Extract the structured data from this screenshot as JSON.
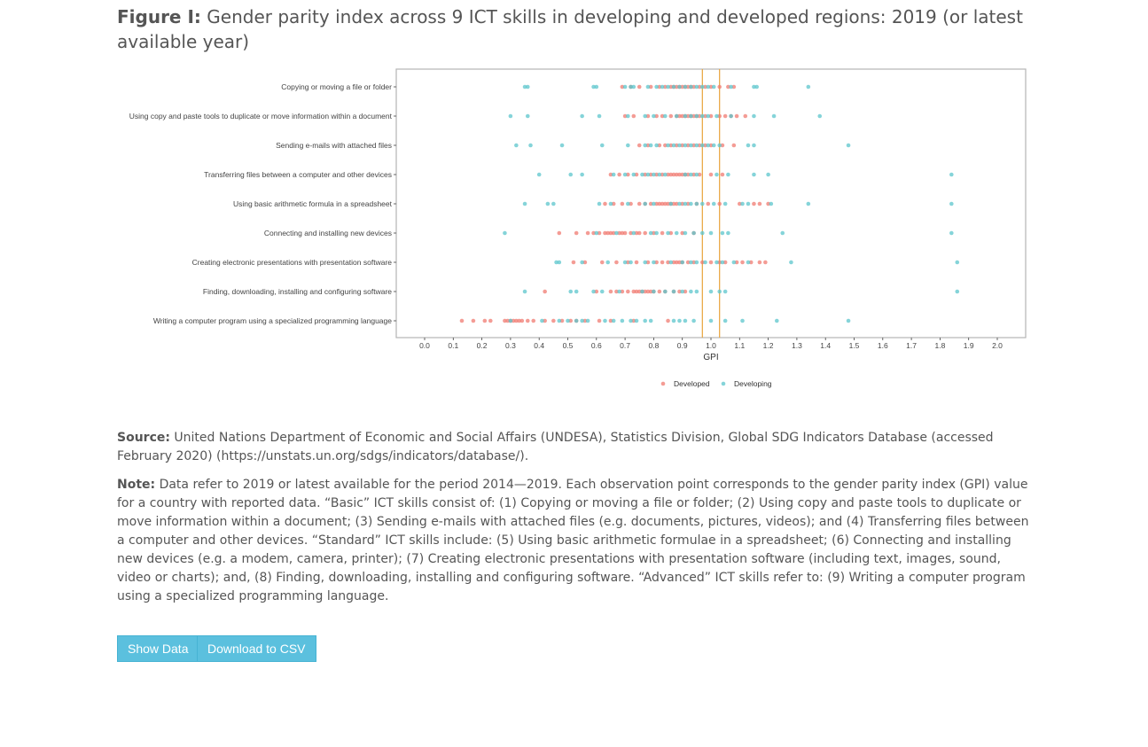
{
  "figure": {
    "label": "Figure I:",
    "title": "Gender parity index across 9 ICT skills in developing and developed regions: 2019 (or latest available year)"
  },
  "chart_data": {
    "type": "scatter",
    "xlabel": "GPI",
    "xlim": [
      -0.05,
      2.15
    ],
    "xticks": [
      "0.0",
      "0.1",
      "0.2",
      "0.3",
      "0.4",
      "0.5",
      "0.6",
      "0.7",
      "0.8",
      "0.9",
      "1.0",
      "1.1",
      "1.2",
      "1.3",
      "1.4",
      "1.5",
      "1.6",
      "1.7",
      "1.8",
      "1.9",
      "2.0"
    ],
    "reference_lines": [
      0.97,
      1.03
    ],
    "reference_line_color": "#e8a33a",
    "grid": false,
    "legend_position": "bottom",
    "categories": [
      "Copying or moving a file or folder",
      "Using copy and paste tools to duplicate or move information within a document",
      "Sending e-mails with attached files",
      "Transferring files between a computer and other devices",
      "Using basic arithmetic formula in a spreadsheet",
      "Connecting and installing new devices",
      "Creating electronic presentations with presentation software",
      "Finding, downloading, installing and configuring software",
      "Writing a computer program using a specialized programming language"
    ],
    "series": [
      {
        "name": "Developed",
        "color": "#f07b72",
        "values": [
          [
            0.69,
            0.72,
            0.75,
            0.79,
            0.82,
            0.84,
            0.86,
            0.87,
            0.88,
            0.89,
            0.9,
            0.91,
            0.92,
            0.93,
            0.94,
            0.96,
            0.98,
            1.0,
            1.03,
            1.06,
            1.08
          ],
          [
            0.7,
            0.73,
            0.78,
            0.81,
            0.83,
            0.86,
            0.88,
            0.89,
            0.9,
            0.91,
            0.92,
            0.93,
            0.94,
            0.95,
            0.96,
            0.98,
            1.0,
            1.03,
            1.05,
            1.07,
            1.09,
            1.12
          ],
          [
            0.75,
            0.78,
            0.82,
            0.84,
            0.86,
            0.88,
            0.9,
            0.92,
            0.94,
            0.96,
            0.98,
            1.0,
            1.04,
            1.08
          ],
          [
            0.65,
            0.68,
            0.71,
            0.74,
            0.77,
            0.79,
            0.81,
            0.83,
            0.85,
            0.86,
            0.87,
            0.88,
            0.89,
            0.9,
            0.91,
            0.92,
            0.94,
            0.96,
            1.0,
            1.04
          ],
          [
            0.63,
            0.66,
            0.69,
            0.72,
            0.75,
            0.77,
            0.79,
            0.81,
            0.82,
            0.83,
            0.84,
            0.85,
            0.86,
            0.87,
            0.88,
            0.9,
            0.92,
            0.95,
            0.99,
            1.03,
            1.1,
            1.15,
            1.17,
            1.2
          ],
          [
            0.47,
            0.53,
            0.57,
            0.59,
            0.61,
            0.63,
            0.64,
            0.65,
            0.66,
            0.68,
            0.69,
            0.7,
            0.72,
            0.74,
            0.75,
            0.77,
            0.8,
            0.83,
            0.86,
            0.9,
            0.94
          ],
          [
            0.52,
            0.56,
            0.62,
            0.67,
            0.71,
            0.74,
            0.78,
            0.81,
            0.83,
            0.85,
            0.87,
            0.88,
            0.89,
            0.9,
            0.92,
            0.94,
            0.97,
            1.0,
            1.03,
            1.05,
            1.09,
            1.11,
            1.14,
            1.17,
            1.19
          ],
          [
            0.42,
            0.6,
            0.65,
            0.67,
            0.69,
            0.71,
            0.73,
            0.74,
            0.75,
            0.76,
            0.77,
            0.78,
            0.79,
            0.8,
            0.82,
            0.84,
            0.87,
            0.89,
            0.91
          ],
          [
            0.13,
            0.17,
            0.21,
            0.23,
            0.28,
            0.29,
            0.3,
            0.31,
            0.32,
            0.33,
            0.34,
            0.36,
            0.38,
            0.42,
            0.45,
            0.48,
            0.51,
            0.53,
            0.56,
            0.61,
            0.65,
            0.73,
            0.85
          ]
        ]
      },
      {
        "name": "Developing",
        "color": "#5cc5cc",
        "values": [
          [
            0.35,
            0.36,
            0.59,
            0.6,
            0.7,
            0.72,
            0.73,
            0.78,
            0.81,
            0.83,
            0.85,
            0.87,
            0.89,
            0.91,
            0.93,
            0.95,
            0.97,
            0.99,
            1.01,
            1.07,
            1.15,
            1.16,
            1.34
          ],
          [
            0.3,
            0.36,
            0.55,
            0.61,
            0.71,
            0.77,
            0.8,
            0.84,
            0.88,
            0.91,
            0.93,
            0.95,
            0.97,
            0.99,
            1.02,
            1.07,
            1.15,
            1.22,
            1.38
          ],
          [
            0.32,
            0.37,
            0.48,
            0.62,
            0.71,
            0.77,
            0.79,
            0.81,
            0.85,
            0.87,
            0.89,
            0.91,
            0.93,
            0.95,
            0.97,
            0.99,
            1.01,
            1.03,
            1.13,
            1.15,
            1.48
          ],
          [
            0.4,
            0.51,
            0.55,
            0.66,
            0.7,
            0.73,
            0.76,
            0.78,
            0.8,
            0.82,
            0.84,
            0.91,
            0.93,
            0.95,
            1.02,
            1.06,
            1.15,
            1.2,
            1.84
          ],
          [
            0.35,
            0.43,
            0.45,
            0.61,
            0.65,
            0.71,
            0.77,
            0.8,
            0.86,
            0.89,
            0.91,
            0.93,
            0.95,
            0.97,
            1.01,
            1.05,
            1.11,
            1.13,
            1.21,
            1.34,
            1.84
          ],
          [
            0.28,
            0.6,
            0.67,
            0.73,
            0.79,
            0.81,
            0.85,
            0.88,
            0.91,
            0.94,
            0.97,
            1.0,
            1.04,
            1.06,
            1.25,
            1.84
          ],
          [
            0.46,
            0.47,
            0.55,
            0.64,
            0.7,
            0.72,
            0.77,
            0.8,
            0.86,
            0.9,
            0.93,
            0.95,
            0.98,
            1.02,
            1.04,
            1.08,
            1.13,
            1.28,
            1.86
          ],
          [
            0.35,
            0.51,
            0.53,
            0.59,
            0.62,
            0.68,
            0.76,
            0.8,
            0.84,
            0.87,
            0.9,
            0.93,
            0.95,
            1.0,
            1.03,
            1.05,
            1.86
          ],
          [
            0.3,
            0.41,
            0.47,
            0.5,
            0.53,
            0.55,
            0.57,
            0.63,
            0.66,
            0.69,
            0.72,
            0.74,
            0.77,
            0.79,
            0.87,
            0.89,
            0.91,
            0.94,
            1.0,
            1.05,
            1.11,
            1.23,
            1.48
          ]
        ]
      }
    ]
  },
  "source": {
    "label": "Source:",
    "text": " United Nations Department of Economic and Social Affairs (UNDESA), Statistics Division, Global SDG Indicators Database (accessed February 2020) (https://unstats.un.org/sdgs/indicators/database/)."
  },
  "note": {
    "label": "Note:",
    "text": " Data refer to 2019 or latest available for the period 2014—2019. Each observation point corresponds to the gender parity index (GPI) value for a country with reported data. “Basic” ICT skills consist of: (1) Copying or moving a file or folder; (2) Using copy and paste tools to duplicate or move information within a document; (3) Sending e-mails with attached files (e.g. documents, pictures, videos); and (4) Transferring files between a computer and other devices. “Standard” ICT skills include: (5) Using basic arithmetic formulae in a spreadsheet; (6) Connecting and installing new devices (e.g. a modem, camera, printer); (7) Creating electronic presentations with presentation software (including text, images, sound, video or charts); and, (8) Finding, downloading, installing and configuring software. “Advanced” ICT skills refer to: (9) Writing a computer program using a specialized programming language."
  },
  "buttons": {
    "show_data": "Show Data",
    "download_csv": "Download to CSV",
    "color": "#5bc0de"
  }
}
